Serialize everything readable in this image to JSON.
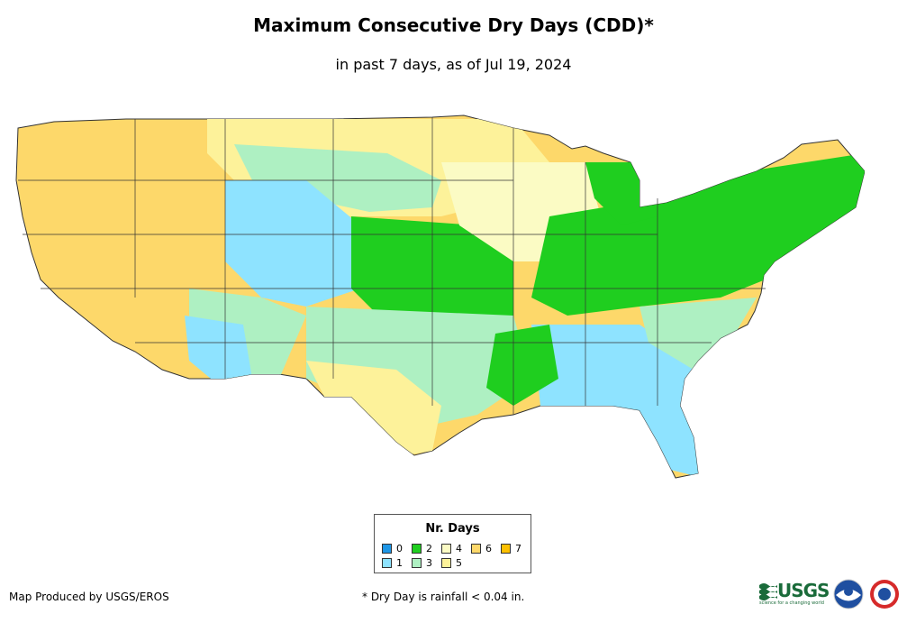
{
  "title": "Maximum Consecutive Dry Days (CDD)*",
  "subtitle": "in past 7 days, as of Jul 19, 2024",
  "legend": {
    "title": "Nr. Days",
    "items": [
      {
        "label": "0",
        "color": "#1e96e6"
      },
      {
        "label": "1",
        "color": "#8ee3ff"
      },
      {
        "label": "2",
        "color": "#1fce1f"
      },
      {
        "label": "3",
        "color": "#aef0c2"
      },
      {
        "label": "4",
        "color": "#fbfbc4"
      },
      {
        "label": "5",
        "color": "#fdf29a"
      },
      {
        "label": "6",
        "color": "#fdd86a"
      },
      {
        "label": "7",
        "color": "#fdc000"
      }
    ]
  },
  "credit": "Map Produced by USGS/EROS",
  "footnote": "* Dry Day is rainfall < 0.04 in.",
  "logos": {
    "usgs": "USGS",
    "usgs_tagline": "science for a changing world",
    "noaa_icon": "noaa-logo-icon",
    "nws_icon": "nws-logo-icon"
  }
}
